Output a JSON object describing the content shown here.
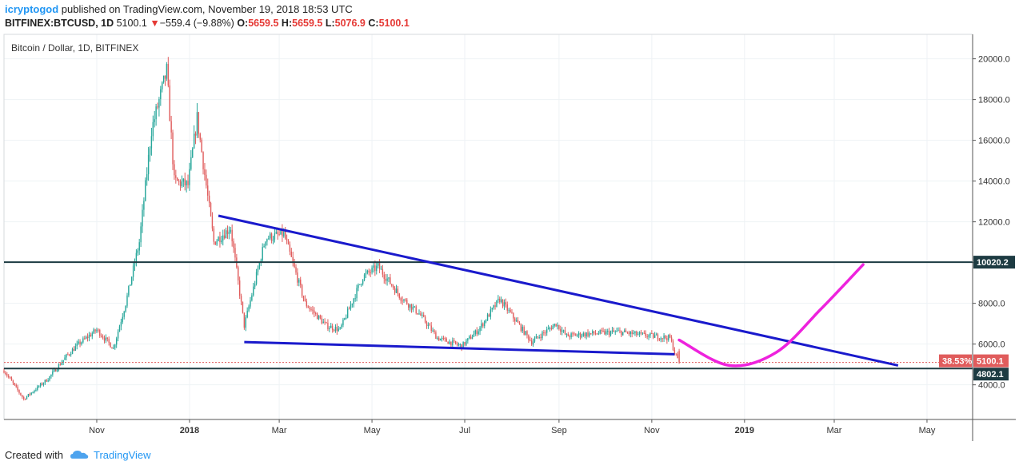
{
  "header": {
    "author": "icryptogod",
    "published_text": "published on TradingView.com, November 19, 2018 18:53 UTC",
    "symbol": "BITFINEX:BTCUSD, 1D",
    "last_price": "5100.1",
    "change": "−559.4 (−9.88%)",
    "o_label": "O:",
    "o_value": "5659.5",
    "h_label": "H:",
    "h_value": "5659.5",
    "l_label": "L:",
    "l_value": "5076.9",
    "c_label": "C:",
    "c_value": "5100.1"
  },
  "footer": {
    "created_with": "Created with",
    "brand": "TradingView"
  },
  "colors": {
    "up": "#26a69a",
    "down": "#e05c5c",
    "trendline": "#1a1acc",
    "hline": "#1d3b42",
    "projection": "#ee22dd",
    "grid": "#eef2f5",
    "axis_text": "#333333"
  },
  "chart_data": {
    "type": "candlestick",
    "title": "Bitcoin / Dollar, 1D, BITFINEX",
    "y_ticks": [
      4000,
      6000,
      8000,
      10000,
      12000,
      14000,
      16000,
      18000,
      20000
    ],
    "y_tick_labels": [
      "4000.0",
      "6000.0",
      "8000.0",
      "10000.0",
      "12000.0",
      "14000.0",
      "16000.0",
      "18000.0",
      "20000.0"
    ],
    "ylim": [
      2300,
      21200
    ],
    "x_range": [
      "2017-09-01",
      "2019-05-31"
    ],
    "x_ticks": [
      {
        "label": "Nov",
        "date": "2017-11-01"
      },
      {
        "label": "2018",
        "date": "2018-01-01",
        "bold": true
      },
      {
        "label": "Mar",
        "date": "2018-03-01"
      },
      {
        "label": "May",
        "date": "2018-05-01"
      },
      {
        "label": "Jul",
        "date": "2018-07-01"
      },
      {
        "label": "Sep",
        "date": "2018-09-01"
      },
      {
        "label": "Nov",
        "date": "2018-11-01"
      },
      {
        "label": "2019",
        "date": "2019-01-01",
        "bold": true
      },
      {
        "label": "Mar",
        "date": "2019-03-01"
      },
      {
        "label": "May",
        "date": "2019-05-01"
      }
    ],
    "price_anchors": [
      [
        "2017-09-01",
        4700
      ],
      [
        "2017-09-14",
        3300
      ],
      [
        "2017-09-30",
        4300
      ],
      [
        "2017-10-12",
        5400
      ],
      [
        "2017-10-20",
        6000
      ],
      [
        "2017-11-01",
        6700
      ],
      [
        "2017-11-12",
        5800
      ],
      [
        "2017-11-20",
        8000
      ],
      [
        "2017-11-29",
        11000
      ],
      [
        "2017-12-07",
        16500
      ],
      [
        "2017-12-17",
        19400
      ],
      [
        "2017-12-22",
        14000
      ],
      [
        "2017-12-31",
        13800
      ],
      [
        "2018-01-06",
        17100
      ],
      [
        "2018-01-17",
        11000
      ],
      [
        "2018-01-28",
        11700
      ],
      [
        "2018-02-06",
        6900
      ],
      [
        "2018-02-20",
        11200
      ],
      [
        "2018-03-04",
        11400
      ],
      [
        "2018-03-18",
        8000
      ],
      [
        "2018-04-01",
        6900
      ],
      [
        "2018-04-10",
        6700
      ],
      [
        "2018-04-25",
        9300
      ],
      [
        "2018-05-05",
        9800
      ],
      [
        "2018-05-20",
        8300
      ],
      [
        "2018-06-01",
        7500
      ],
      [
        "2018-06-13",
        6300
      ],
      [
        "2018-06-29",
        5900
      ],
      [
        "2018-07-10",
        6700
      ],
      [
        "2018-07-24",
        8200
      ],
      [
        "2018-08-14",
        6100
      ],
      [
        "2018-08-30",
        7000
      ],
      [
        "2018-09-06",
        6400
      ],
      [
        "2018-09-20",
        6500
      ],
      [
        "2018-10-10",
        6600
      ],
      [
        "2018-10-25",
        6450
      ],
      [
        "2018-11-13",
        6300
      ],
      [
        "2018-11-16",
        5600
      ],
      [
        "2018-11-19",
        5100
      ]
    ],
    "last_close": 5100.1,
    "annotations": {
      "resistance_level": 10020.2,
      "resistance_label": "10020.2",
      "support_level": 4802.1,
      "support_label": "4802.1",
      "price_label": "5100.1",
      "pct_label": "38.53%",
      "upper_trendline": [
        [
          "2018-01-20",
          12300
        ],
        [
          "2019-04-12",
          4950
        ]
      ],
      "lower_trendline": [
        [
          "2018-02-06",
          6100
        ],
        [
          "2018-11-16",
          5500
        ]
      ],
      "projection_curve": [
        [
          "2018-11-19",
          6200
        ],
        [
          "2018-12-22",
          4950
        ],
        [
          "2019-01-22",
          5600
        ],
        [
          "2019-02-20",
          7700
        ],
        [
          "2019-03-20",
          9900
        ]
      ]
    }
  }
}
